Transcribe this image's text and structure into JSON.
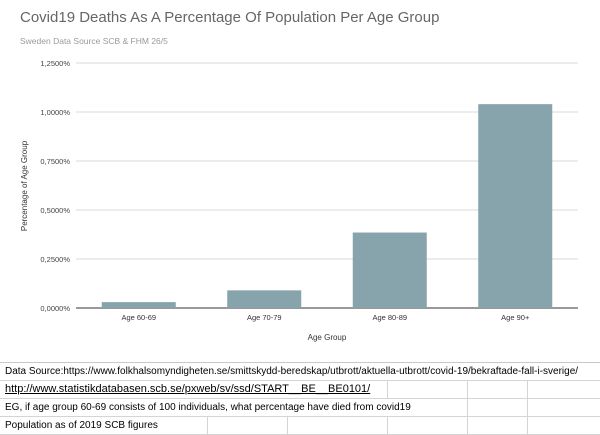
{
  "chart_data": {
    "type": "bar",
    "title": "Covid19 Deaths As A Percentage Of Population Per Age Group",
    "subtitle": "Sweden Data Source SCB & FHM 26/5",
    "xlabel": "Age Group",
    "ylabel": "Percentage of Age Group",
    "categories": [
      "Age 60-69",
      "Age 70-79",
      "Age 80-89",
      "Age 90+"
    ],
    "values": [
      0.03,
      0.09,
      0.385,
      1.04
    ],
    "ylim": [
      0,
      1.25
    ],
    "yticks": [
      0,
      0.25,
      0.5,
      0.75,
      1.0,
      1.25
    ],
    "ytick_labels": [
      "0,0000%",
      "0,2500%",
      "0,5000%",
      "0,7500%",
      "1,0000%",
      "1,2500%"
    ],
    "grid": true,
    "bar_color": "#87a3ab",
    "grid_color": "#cccccc"
  },
  "sheet": {
    "row1": "Data Source:https://www.folkhalsomyndigheten.se/smittskydd-beredskap/utbrott/aktuella-utbrott/covid-19/bekraftade-fall-i-sverige/",
    "row2": "http://www.statistikdatabasen.scb.se/pxweb/sv/ssd/START__BE__BE0101/",
    "row3": "EG, if age group 60-69 consists of 100 individuals, what percentage have died from covid19",
    "row4": "Population as of 2019 SCB figures"
  }
}
